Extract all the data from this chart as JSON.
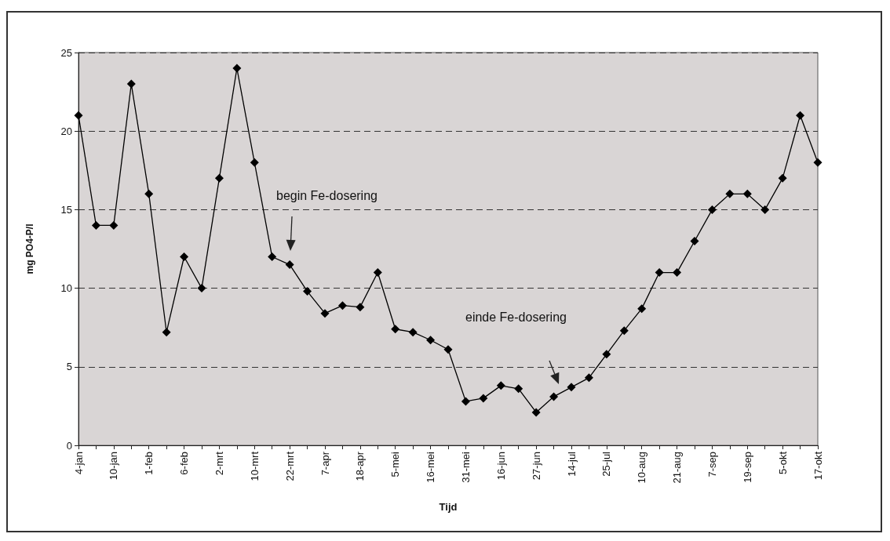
{
  "chart_data": {
    "type": "line",
    "xlabel": "Tijd",
    "ylabel": "mg PO4-P/l",
    "categories": [
      "4-jan",
      null,
      "10-jan",
      null,
      "1-feb",
      null,
      "6-feb",
      null,
      "2-mrt",
      null,
      "10-mrt",
      null,
      "22-mrt",
      null,
      "7-apr",
      null,
      "18-apr",
      null,
      "5-mei",
      null,
      "16-mei",
      null,
      "31-mei",
      null,
      "16-jun",
      null,
      "27-jun",
      null,
      "14-jul",
      null,
      "25-jul",
      null,
      "10-aug",
      null,
      "21-aug",
      null,
      "7-sep",
      null,
      "19-sep",
      null,
      "5-okt",
      null,
      "17-okt"
    ],
    "series": [
      {
        "color": "#000000",
        "values": [
          21,
          14,
          14,
          23,
          16,
          7.2,
          12,
          10,
          17,
          24,
          18,
          12,
          11.5,
          9.8,
          8.4,
          8.9,
          8.8,
          11,
          7.4,
          7.2,
          6.7,
          6.1,
          2.8,
          3.0,
          3.8,
          3.6,
          2.1,
          3.1,
          3.7,
          4.3,
          5.8,
          7.3,
          8.7,
          11,
          11,
          13,
          15,
          16,
          16,
          15,
          17,
          21,
          18
        ]
      }
    ],
    "ylim": [
      0,
      25
    ],
    "yticks": [
      0,
      5,
      10,
      15,
      20,
      25
    ],
    "grid": "y",
    "marker": "diamond",
    "line_style": "solid",
    "annotations": [
      "begin Fe-dosering",
      "einde Fe-dosering"
    ]
  }
}
